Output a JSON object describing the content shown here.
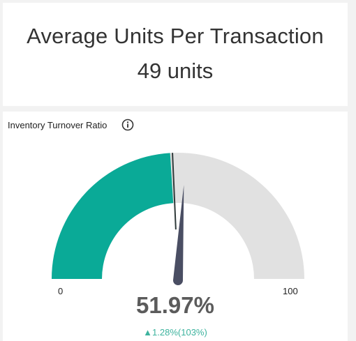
{
  "kpi": {
    "title": "Average Units Per Transaction",
    "value": "49 units"
  },
  "gauge": {
    "title": "Inventory Turnover Ratio",
    "info_icon": "info-circle-icon",
    "min_label": "0",
    "max_label": "100",
    "min": 0,
    "max": 100,
    "fill_value": 48,
    "target_value": 51.97,
    "value_text": "51.97%",
    "change_arrow": "▲",
    "change_text": "1.28%(103%)",
    "colors": {
      "fill": "#0aaa97",
      "track": "#e1e1e1",
      "needle": "#4a4e63",
      "marker": "#2f3a3a",
      "positive": "#3db39e"
    }
  }
}
